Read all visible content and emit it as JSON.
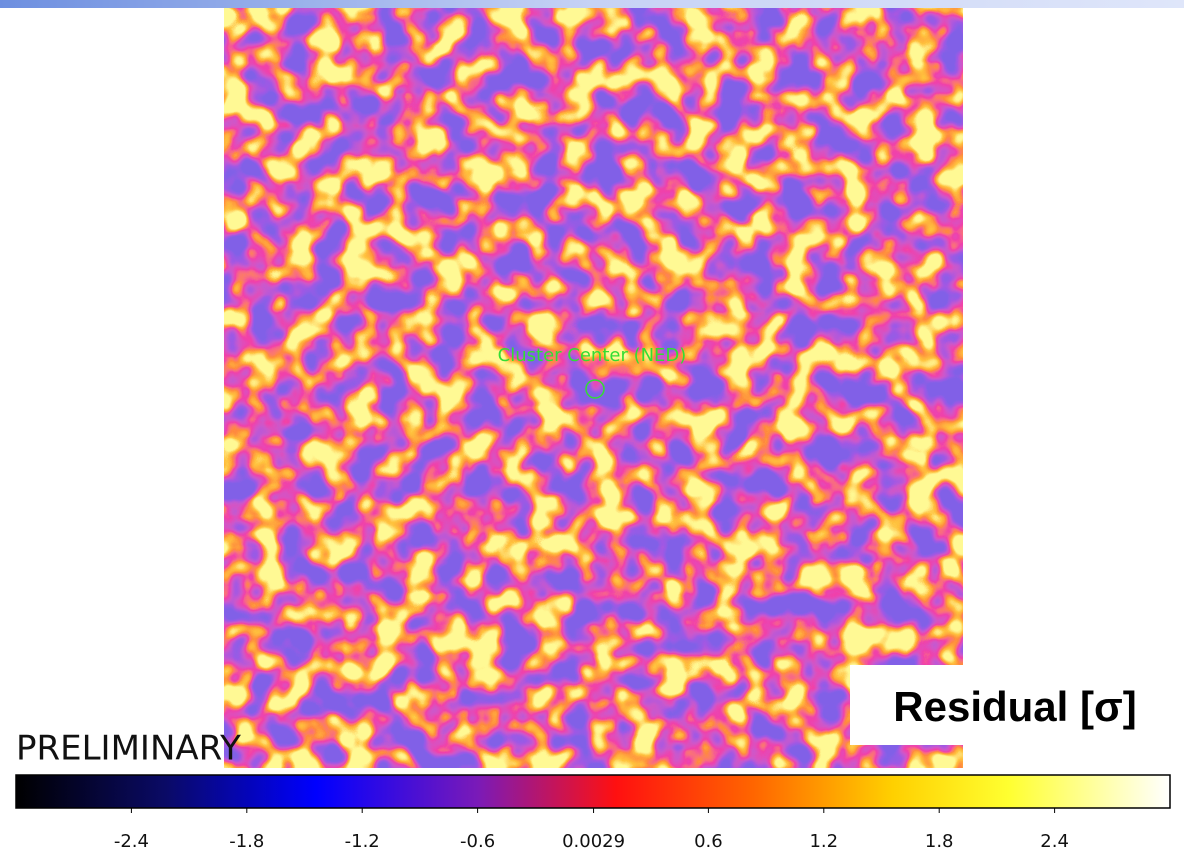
{
  "chart_data": {
    "type": "heatmap",
    "annotation": "Cluster Center (NED)",
    "colorbar_label": "Residual [σ]",
    "watermark": "PRELIMINARY",
    "clim": [
      -3,
      3
    ],
    "cticks": [
      -2.4,
      -1.8,
      -1.2,
      -0.6,
      0.0029,
      0.6,
      1.2,
      1.8,
      2.4
    ]
  }
}
